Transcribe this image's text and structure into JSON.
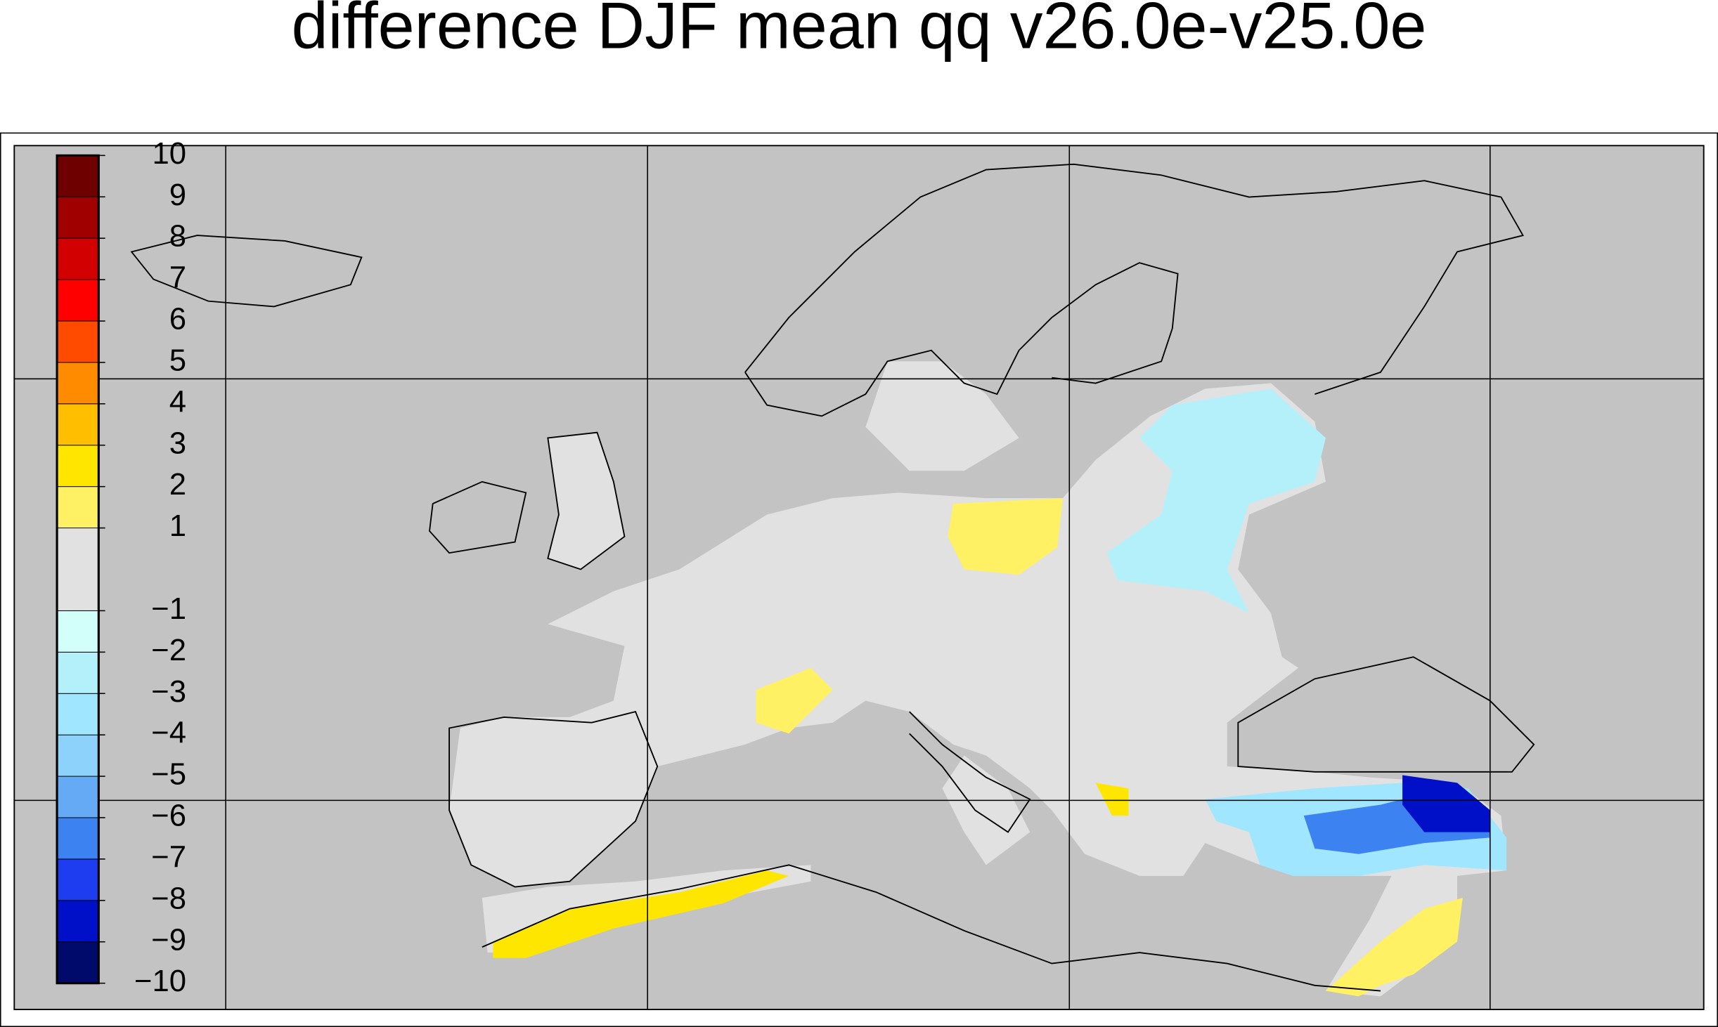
{
  "title": "difference DJF mean qq v26.0e-v25.0e",
  "colorbar": {
    "bounds": [
      -10,
      -9,
      -8,
      -7,
      -6,
      -5,
      -4,
      -3,
      -2,
      -1,
      1,
      2,
      3,
      4,
      5,
      6,
      7,
      8,
      9,
      10
    ],
    "colors": [
      "#000a6b",
      "#0010c8",
      "#1e3cf0",
      "#3c82f0",
      "#64aaf5",
      "#8cd2fa",
      "#a0e6ff",
      "#b4f0fa",
      "#d2fffa",
      "#e1e1e1",
      "#fff064",
      "#ffe600",
      "#ffbe00",
      "#ff8c00",
      "#ff4b00",
      "#ff0000",
      "#d20000",
      "#a00000",
      "#6e0000"
    ],
    "ticks": [
      {
        "value": -10,
        "label": "−10"
      },
      {
        "value": -9,
        "label": "−9"
      },
      {
        "value": -8,
        "label": "−8"
      },
      {
        "value": -7,
        "label": "−7"
      },
      {
        "value": -6,
        "label": "−6"
      },
      {
        "value": -5,
        "label": "−5"
      },
      {
        "value": -4,
        "label": "−4"
      },
      {
        "value": -3,
        "label": "−3"
      },
      {
        "value": -2,
        "label": "−2"
      },
      {
        "value": -1,
        "label": "−1"
      },
      1,
      2,
      3,
      4,
      5,
      6,
      7,
      8,
      9,
      10
    ]
  }
}
